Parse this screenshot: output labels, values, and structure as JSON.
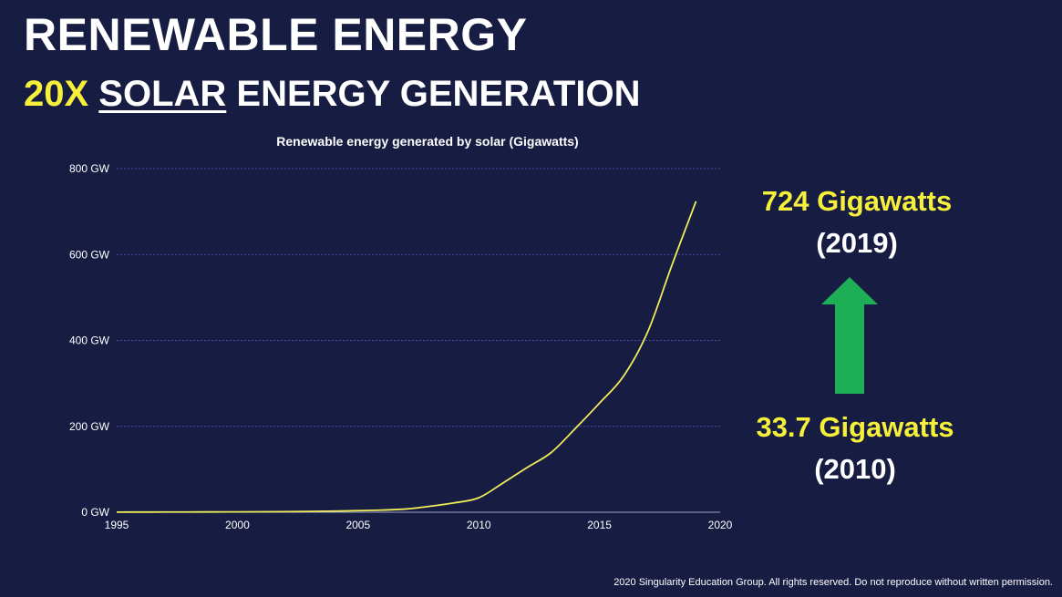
{
  "slide": {
    "title": "RENEWABLE ENERGY",
    "subtitle_multiplier": "20X",
    "subtitle_underlined": "SOLAR",
    "subtitle_rest": "ENERGY GENERATION",
    "footer": "2020 Singularity Education Group. All rights reserved. Do not reproduce without written permission."
  },
  "stats": {
    "top_value": "724 Gigawatts",
    "top_year": "(2019)",
    "bottom_value": "33.7 Gigawatts",
    "bottom_year": "(2010)"
  },
  "colors": {
    "background": "#161c42",
    "accent_yellow": "#f6f03a",
    "arrow_green": "#1eae55",
    "gridline": "#3d55a8",
    "line": "#f2ec5a"
  },
  "chart_data": {
    "type": "line",
    "title": "Renewable energy generated by solar (Gigawatts)",
    "xlabel": "",
    "ylabel": "",
    "xlim": [
      1995,
      2020
    ],
    "ylim": [
      0,
      800
    ],
    "x_ticks": [
      1995,
      2000,
      2005,
      2010,
      2015,
      2020
    ],
    "y_ticks": [
      0,
      200,
      400,
      600,
      800
    ],
    "y_tick_labels": [
      "0 GW",
      "200 GW",
      "400 GW",
      "600 GW",
      "800 GW"
    ],
    "grid": true,
    "series": [
      {
        "name": "Solar",
        "x": [
          1995,
          1996,
          1997,
          1998,
          1999,
          2000,
          2001,
          2002,
          2003,
          2004,
          2005,
          2006,
          2007,
          2008,
          2009,
          2010,
          2011,
          2012,
          2013,
          2014,
          2015,
          2016,
          2017,
          2018,
          2019
        ],
        "values": [
          0.3,
          0.4,
          0.5,
          0.6,
          0.7,
          0.8,
          1.0,
          1.3,
          1.8,
          2.6,
          3.7,
          5.1,
          7.6,
          14,
          22,
          33.7,
          68,
          104,
          139,
          195,
          254,
          317,
          420,
          575,
          724
        ]
      }
    ]
  }
}
